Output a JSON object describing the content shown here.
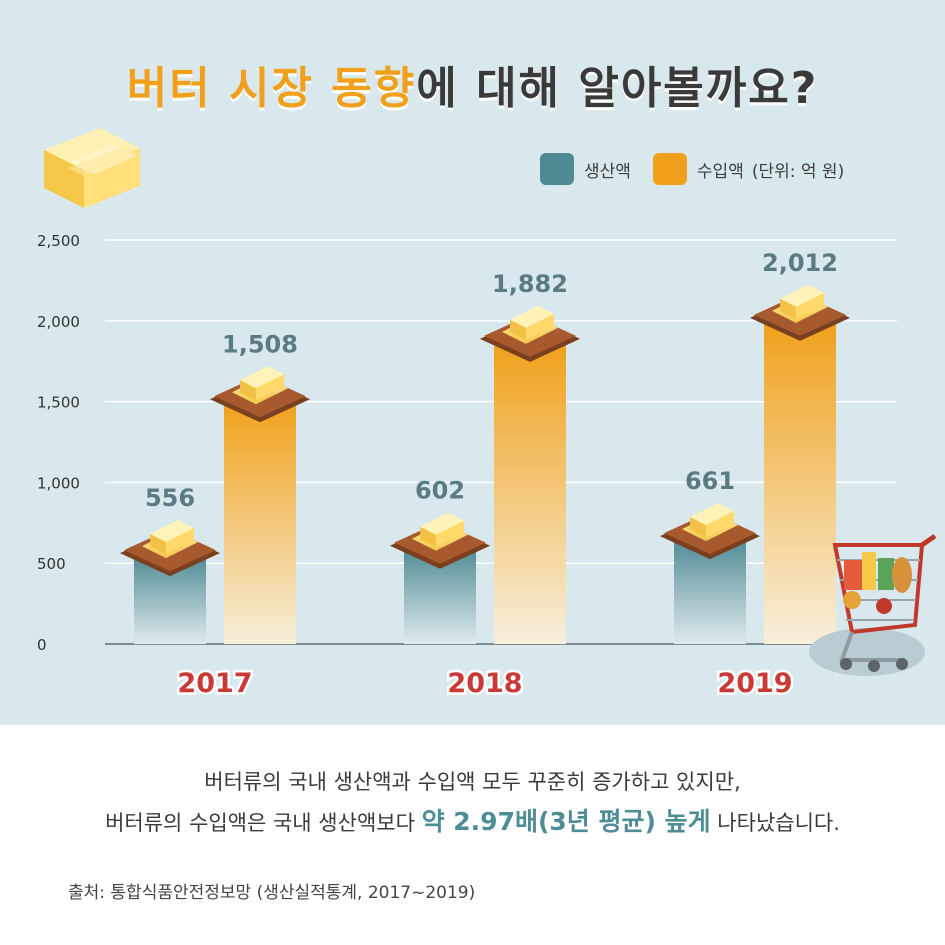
{
  "title": {
    "highlight": "버터 시장 동향",
    "rest": "에 대해 알아볼까요?"
  },
  "legend": {
    "production": "생산액",
    "import": "수입액",
    "unit": "(단위: 억 원)"
  },
  "colors": {
    "production": "#4f8a94",
    "import": "#f0a01a",
    "year_label": "#c93a36",
    "background": "#d9e8ec"
  },
  "chart_data": {
    "type": "bar",
    "categories": [
      "2017",
      "2018",
      "2019"
    ],
    "series": [
      {
        "name": "생산액",
        "values": [
          556,
          602,
          661
        ]
      },
      {
        "name": "수입액",
        "values": [
          1508,
          1882,
          2012
        ]
      }
    ],
    "data_labels": [
      [
        "556",
        "602",
        "661"
      ],
      [
        "1,508",
        "1,882",
        "2,012"
      ]
    ],
    "yticks": [
      "0",
      "500",
      "1,000",
      "1,500",
      "2,000",
      "2,500"
    ],
    "ylim": [
      0,
      2500
    ],
    "grid": true,
    "legend_position": "top-right"
  },
  "caption": {
    "line1": "버터류의 국내 생산액과 수입액 모두 꾸준히 증가하고 있지만,",
    "line2_pre": "버터류의 수입액은 국내 생산액보다 ",
    "line2_em": "약 2.97배(3년 평균) 높게",
    "line2_post": " 나타났습니다."
  },
  "source": "출처: 통합식품안전정보망 (생산실적통계, 2017~2019)"
}
